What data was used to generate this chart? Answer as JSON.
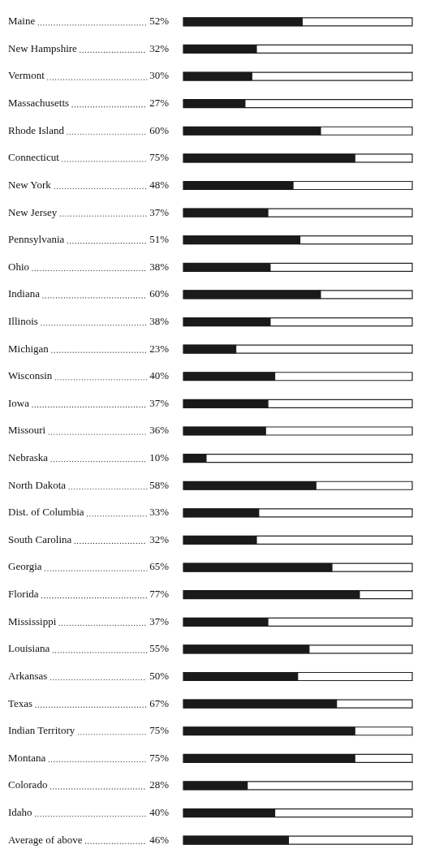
{
  "chart_data": {
    "type": "bar",
    "orientation": "horizontal",
    "categories": [
      "Maine",
      "New Hampshire",
      "Vermont",
      "Massachusetts",
      "Rhode Island",
      "Connecticut",
      "New York",
      "New Jersey",
      "Pennsylvania",
      "Ohio",
      "Indiana",
      "Illinois",
      "Michigan",
      "Wisconsin",
      "Iowa",
      "Missouri",
      "Nebraska",
      "North Dakota",
      "Dist. of Columbia",
      "South Carolina",
      "Georgia",
      "Florida",
      "Mississippi",
      "Louisiana",
      "Arkansas",
      "Texas",
      "Indian Territory",
      "Montana",
      "Colorado",
      "Idaho",
      "Average of above"
    ],
    "values": [
      52,
      32,
      30,
      27,
      60,
      75,
      48,
      37,
      51,
      38,
      60,
      38,
      23,
      40,
      37,
      36,
      10,
      58,
      33,
      32,
      65,
      77,
      37,
      55,
      50,
      67,
      75,
      75,
      28,
      40,
      46
    ],
    "value_labels": [
      "52%",
      "32%",
      "30%",
      "27%",
      "60%",
      "75%",
      "48%",
      "37%",
      "51%",
      "38%",
      "60%",
      "38%",
      "23%",
      "40%",
      "37%",
      "36%",
      "10%",
      "58%",
      "33%",
      "32%",
      "65%",
      "77%",
      "37%",
      "55%",
      "50%",
      "67%",
      "75%",
      "75%",
      "28%",
      "40%",
      "46%"
    ],
    "color": "#1a1a1a",
    "xlim": [
      0,
      100
    ],
    "tick_labels": false,
    "legend": false
  }
}
